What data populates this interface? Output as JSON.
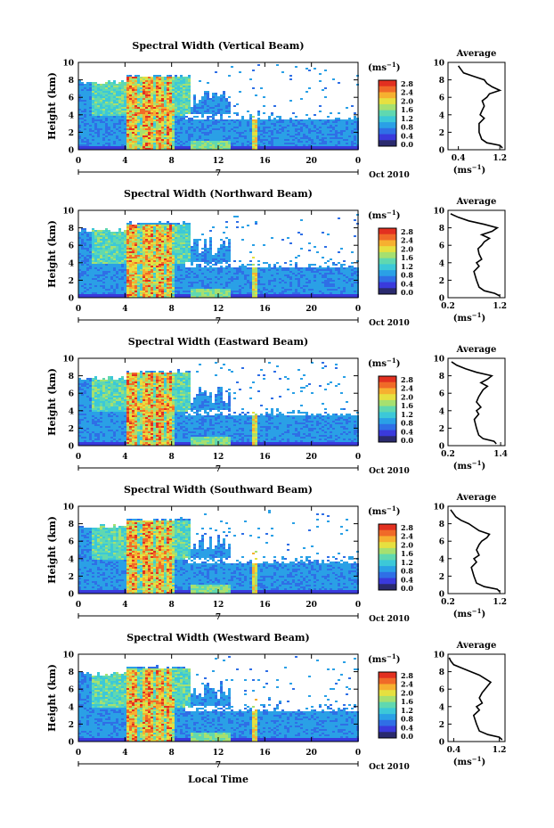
{
  "figure": {
    "xlabel": "Local Time",
    "date_label": "Oct 2010",
    "day_marker": "7",
    "unit_label": "(ms",
    "unit_sup": "−1",
    "avg_title": "Average",
    "avg_unit": "(ms",
    "avg_unit_sup": "−1"
  },
  "colors": {
    "scale": [
      "#2a2a6e",
      "#3a3adc",
      "#2f6fe6",
      "#2aa0e6",
      "#3cc8d8",
      "#60d8b0",
      "#a6e070",
      "#e6e040",
      "#f6b030",
      "#f06a28",
      "#e23020"
    ]
  },
  "chart_data": [
    {
      "type": "heatmap",
      "title": "Spectral Width (Vertical Beam)",
      "ylabel": "Height (km)",
      "x_ticks": [
        "0",
        "4",
        "8",
        "12",
        "16",
        "20",
        "0"
      ],
      "y_ticks": [
        "0",
        "2",
        "4",
        "6",
        "8",
        "10"
      ],
      "xlim": [
        0,
        24
      ],
      "ylim": [
        0,
        10
      ],
      "colorbar_ticks": [
        "2.8",
        "2.4",
        "2.0",
        "1.6",
        "1.2",
        "0.8",
        "0.4",
        "0.0"
      ],
      "colorbar_range": [
        0,
        2.8
      ],
      "average_profile": {
        "x_ticks": [
          "0.4",
          "1.2"
        ],
        "xlim": [
          0.2,
          1.3
        ],
        "heights": [
          0.2,
          0.5,
          0.8,
          1.2,
          2,
          3,
          3.6,
          4,
          4.4,
          5,
          5.6,
          6,
          6.4,
          6.8,
          7.2,
          7.6,
          8,
          8.4,
          8.8,
          9.2,
          9.6
        ],
        "values": [
          1.25,
          1.2,
          0.95,
          0.85,
          0.8,
          0.8,
          0.9,
          0.82,
          0.85,
          0.9,
          0.86,
          0.95,
          1.0,
          1.2,
          1.05,
          0.95,
          0.9,
          0.7,
          0.5,
          0.45,
          0.4
        ]
      }
    },
    {
      "type": "heatmap",
      "title": "Spectral Width (Northward Beam)",
      "ylabel": "Height (km)",
      "x_ticks": [
        "0",
        "4",
        "8",
        "12",
        "16",
        "20",
        "0"
      ],
      "y_ticks": [
        "0",
        "2",
        "4",
        "6",
        "8",
        "10"
      ],
      "xlim": [
        0,
        24
      ],
      "ylim": [
        0,
        10
      ],
      "colorbar_ticks": [
        "2.8",
        "2.4",
        "2.0",
        "1.6",
        "1.2",
        "0.8",
        "0.4",
        "0.0"
      ],
      "colorbar_range": [
        0,
        2.8
      ],
      "average_profile": {
        "x_ticks": [
          "0.2",
          "1.2"
        ],
        "xlim": [
          0.2,
          1.3
        ],
        "heights": [
          0.2,
          0.5,
          0.8,
          1.2,
          2,
          3,
          3.6,
          4,
          4.4,
          5,
          5.6,
          6,
          6.4,
          6.8,
          7.2,
          7.6,
          8,
          8.4,
          8.8,
          9.2,
          9.6
        ],
        "values": [
          1.2,
          1.1,
          0.9,
          0.8,
          0.75,
          0.7,
          0.8,
          0.75,
          0.85,
          0.8,
          0.78,
          0.85,
          0.9,
          1.0,
          0.85,
          1.05,
          1.15,
          0.9,
          0.6,
          0.4,
          0.25
        ]
      }
    },
    {
      "type": "heatmap",
      "title": "Spectral Width (Eastward Beam)",
      "ylabel": "Height (km)",
      "x_ticks": [
        "0",
        "4",
        "8",
        "12",
        "16",
        "20",
        "0"
      ],
      "y_ticks": [
        "0",
        "2",
        "4",
        "6",
        "8",
        "10"
      ],
      "xlim": [
        0,
        24
      ],
      "ylim": [
        0,
        10
      ],
      "colorbar_ticks": [
        "2.8",
        "2.4",
        "2.0",
        "1.6",
        "1.2",
        "0.8",
        "0.4",
        "0.0"
      ],
      "colorbar_range": [
        0,
        2.8
      ],
      "average_profile": {
        "x_ticks": [
          "0.2",
          "1.4"
        ],
        "xlim": [
          0.2,
          1.5
        ],
        "heights": [
          0.2,
          0.5,
          0.8,
          1.2,
          2,
          3,
          3.6,
          4,
          4.4,
          5,
          5.6,
          6,
          6.4,
          6.8,
          7.2,
          7.6,
          8,
          8.4,
          8.8,
          9.2,
          9.6
        ],
        "values": [
          1.3,
          1.25,
          1.0,
          0.9,
          0.85,
          0.8,
          0.9,
          0.85,
          0.95,
          0.85,
          0.9,
          0.95,
          1.0,
          1.1,
          0.95,
          1.1,
          1.2,
          0.85,
          0.6,
          0.4,
          0.28
        ]
      }
    },
    {
      "type": "heatmap",
      "title": "Spectral Width (Southward Beam)",
      "ylabel": "Height (km)",
      "x_ticks": [
        "0",
        "4",
        "8",
        "12",
        "16",
        "20",
        "0"
      ],
      "y_ticks": [
        "0",
        "2",
        "4",
        "6",
        "8",
        "10"
      ],
      "xlim": [
        0,
        24
      ],
      "ylim": [
        0,
        10
      ],
      "colorbar_ticks": [
        "2.8",
        "2.4",
        "2.0",
        "1.6",
        "1.2",
        "0.8",
        "0.4",
        "0.0"
      ],
      "colorbar_range": [
        0,
        2.8
      ],
      "average_profile": {
        "x_ticks": [
          "0.2",
          "1.2"
        ],
        "xlim": [
          0.2,
          1.3
        ],
        "heights": [
          0.2,
          0.5,
          0.8,
          1.2,
          2,
          3,
          3.6,
          4,
          4.4,
          5,
          5.6,
          6,
          6.4,
          6.8,
          7.2,
          7.6,
          8,
          8.4,
          8.8,
          9.2,
          9.6
        ],
        "values": [
          1.2,
          1.15,
          0.9,
          0.75,
          0.7,
          0.65,
          0.75,
          0.7,
          0.8,
          0.75,
          0.8,
          0.85,
          0.95,
          1.0,
          0.8,
          0.7,
          0.6,
          0.45,
          0.35,
          0.3,
          0.25
        ]
      }
    },
    {
      "type": "heatmap",
      "title": "Spectral Width (Westward Beam)",
      "ylabel": "Height (km)",
      "x_ticks": [
        "0",
        "4",
        "8",
        "12",
        "16",
        "20",
        "0"
      ],
      "y_ticks": [
        "0",
        "2",
        "4",
        "6",
        "8",
        "10"
      ],
      "xlim": [
        0,
        24
      ],
      "ylim": [
        0,
        10
      ],
      "colorbar_ticks": [
        "2.8",
        "2.4",
        "2.0",
        "1.6",
        "1.2",
        "0.8",
        "0.4",
        "0.0"
      ],
      "colorbar_range": [
        0,
        2.8
      ],
      "average_profile": {
        "x_ticks": [
          "0.4",
          "1.2"
        ],
        "xlim": [
          0.3,
          1.3
        ],
        "heights": [
          0.2,
          0.5,
          0.8,
          1.2,
          2,
          3,
          3.6,
          4,
          4.4,
          5,
          5.6,
          6,
          6.4,
          6.8,
          7.2,
          7.6,
          8,
          8.4,
          8.8,
          9.2,
          9.6
        ],
        "values": [
          1.25,
          1.2,
          1.0,
          0.85,
          0.8,
          0.75,
          0.85,
          0.8,
          0.9,
          0.85,
          0.9,
          0.95,
          1.0,
          1.05,
          0.95,
          0.85,
          0.7,
          0.55,
          0.4,
          0.35,
          0.32
        ]
      }
    }
  ]
}
